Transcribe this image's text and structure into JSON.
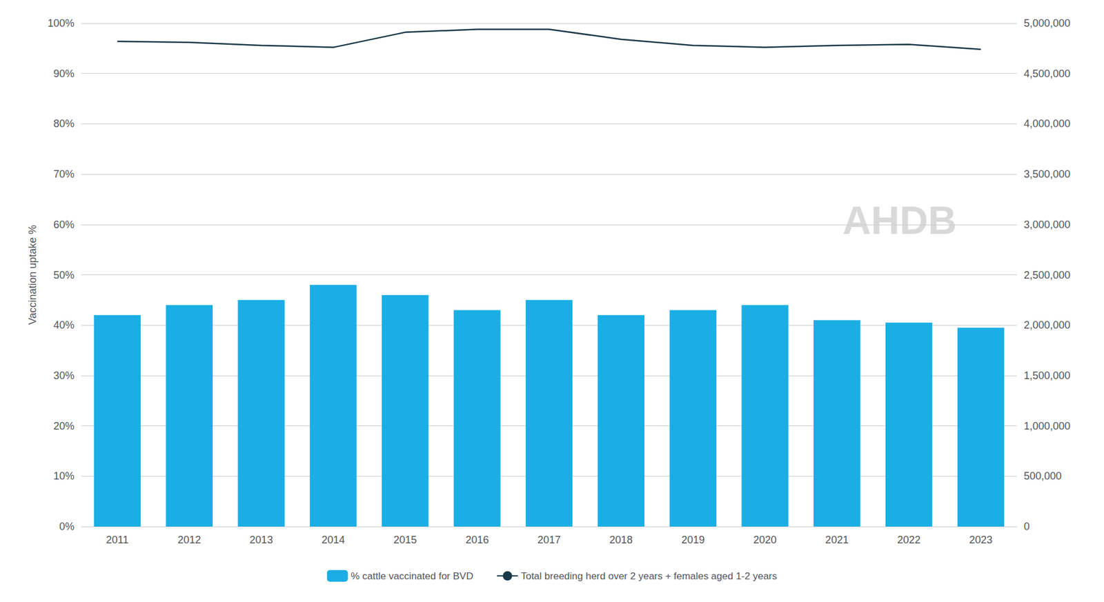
{
  "chart_data": {
    "type": "bar",
    "categories": [
      "2011",
      "2012",
      "2013",
      "2014",
      "2015",
      "2016",
      "2017",
      "2018",
      "2019",
      "2020",
      "2021",
      "2022",
      "2023"
    ],
    "series": [
      {
        "name": "% cattle vaccinated for BVD",
        "type": "bar",
        "color": "#1aaee5",
        "values": [
          0.42,
          0.44,
          0.45,
          0.48,
          0.46,
          0.43,
          0.45,
          0.42,
          0.43,
          0.44,
          0.41,
          0.405,
          0.395
        ]
      },
      {
        "name": "Total breeding herd over 2 years + females aged 1-2 years",
        "type": "line",
        "color": "#1a3a4a",
        "axis": "y2",
        "values": [
          4820000,
          4810000,
          4780000,
          4760000,
          4910000,
          4940000,
          4940000,
          4840000,
          4780000,
          4760000,
          4780000,
          4790000,
          4740000
        ]
      }
    ],
    "ylabel": "Vaccination uptake %",
    "ylim": [
      0,
      1.0
    ],
    "yticks": [
      {
        "value": 0.0,
        "label": "0%"
      },
      {
        "value": 0.1,
        "label": "10%"
      },
      {
        "value": 0.2,
        "label": "20%"
      },
      {
        "value": 0.3,
        "label": "30%"
      },
      {
        "value": 0.4,
        "label": "40%"
      },
      {
        "value": 0.5,
        "label": "50%"
      },
      {
        "value": 0.6,
        "label": "60%"
      },
      {
        "value": 0.7,
        "label": "70%"
      },
      {
        "value": 0.8,
        "label": "80%"
      },
      {
        "value": 0.9,
        "label": "90%"
      },
      {
        "value": 1.0,
        "label": "100%"
      }
    ],
    "y2lim": [
      0,
      5000000
    ],
    "y2ticks": [
      0,
      {
        "value": 500000,
        "label": "500,000"
      },
      {
        "value": 1000000,
        "label": "1,000,000"
      },
      {
        "value": 1500000,
        "label": "1,500,000"
      },
      {
        "value": 2000000,
        "label": "2,000,000"
      },
      {
        "value": 2500000,
        "label": "2,500,000"
      },
      {
        "value": 3000000,
        "label": "3,000,000"
      },
      {
        "value": 3500000,
        "label": "3,500,000"
      },
      {
        "value": 4000000,
        "label": "4,000,000"
      },
      {
        "value": 4500000,
        "label": "4,500,000"
      },
      {
        "value": 5000000,
        "label": "5,000,000"
      }
    ],
    "grid": true,
    "legend": "bottom",
    "annotations": [
      "AHDB"
    ]
  }
}
